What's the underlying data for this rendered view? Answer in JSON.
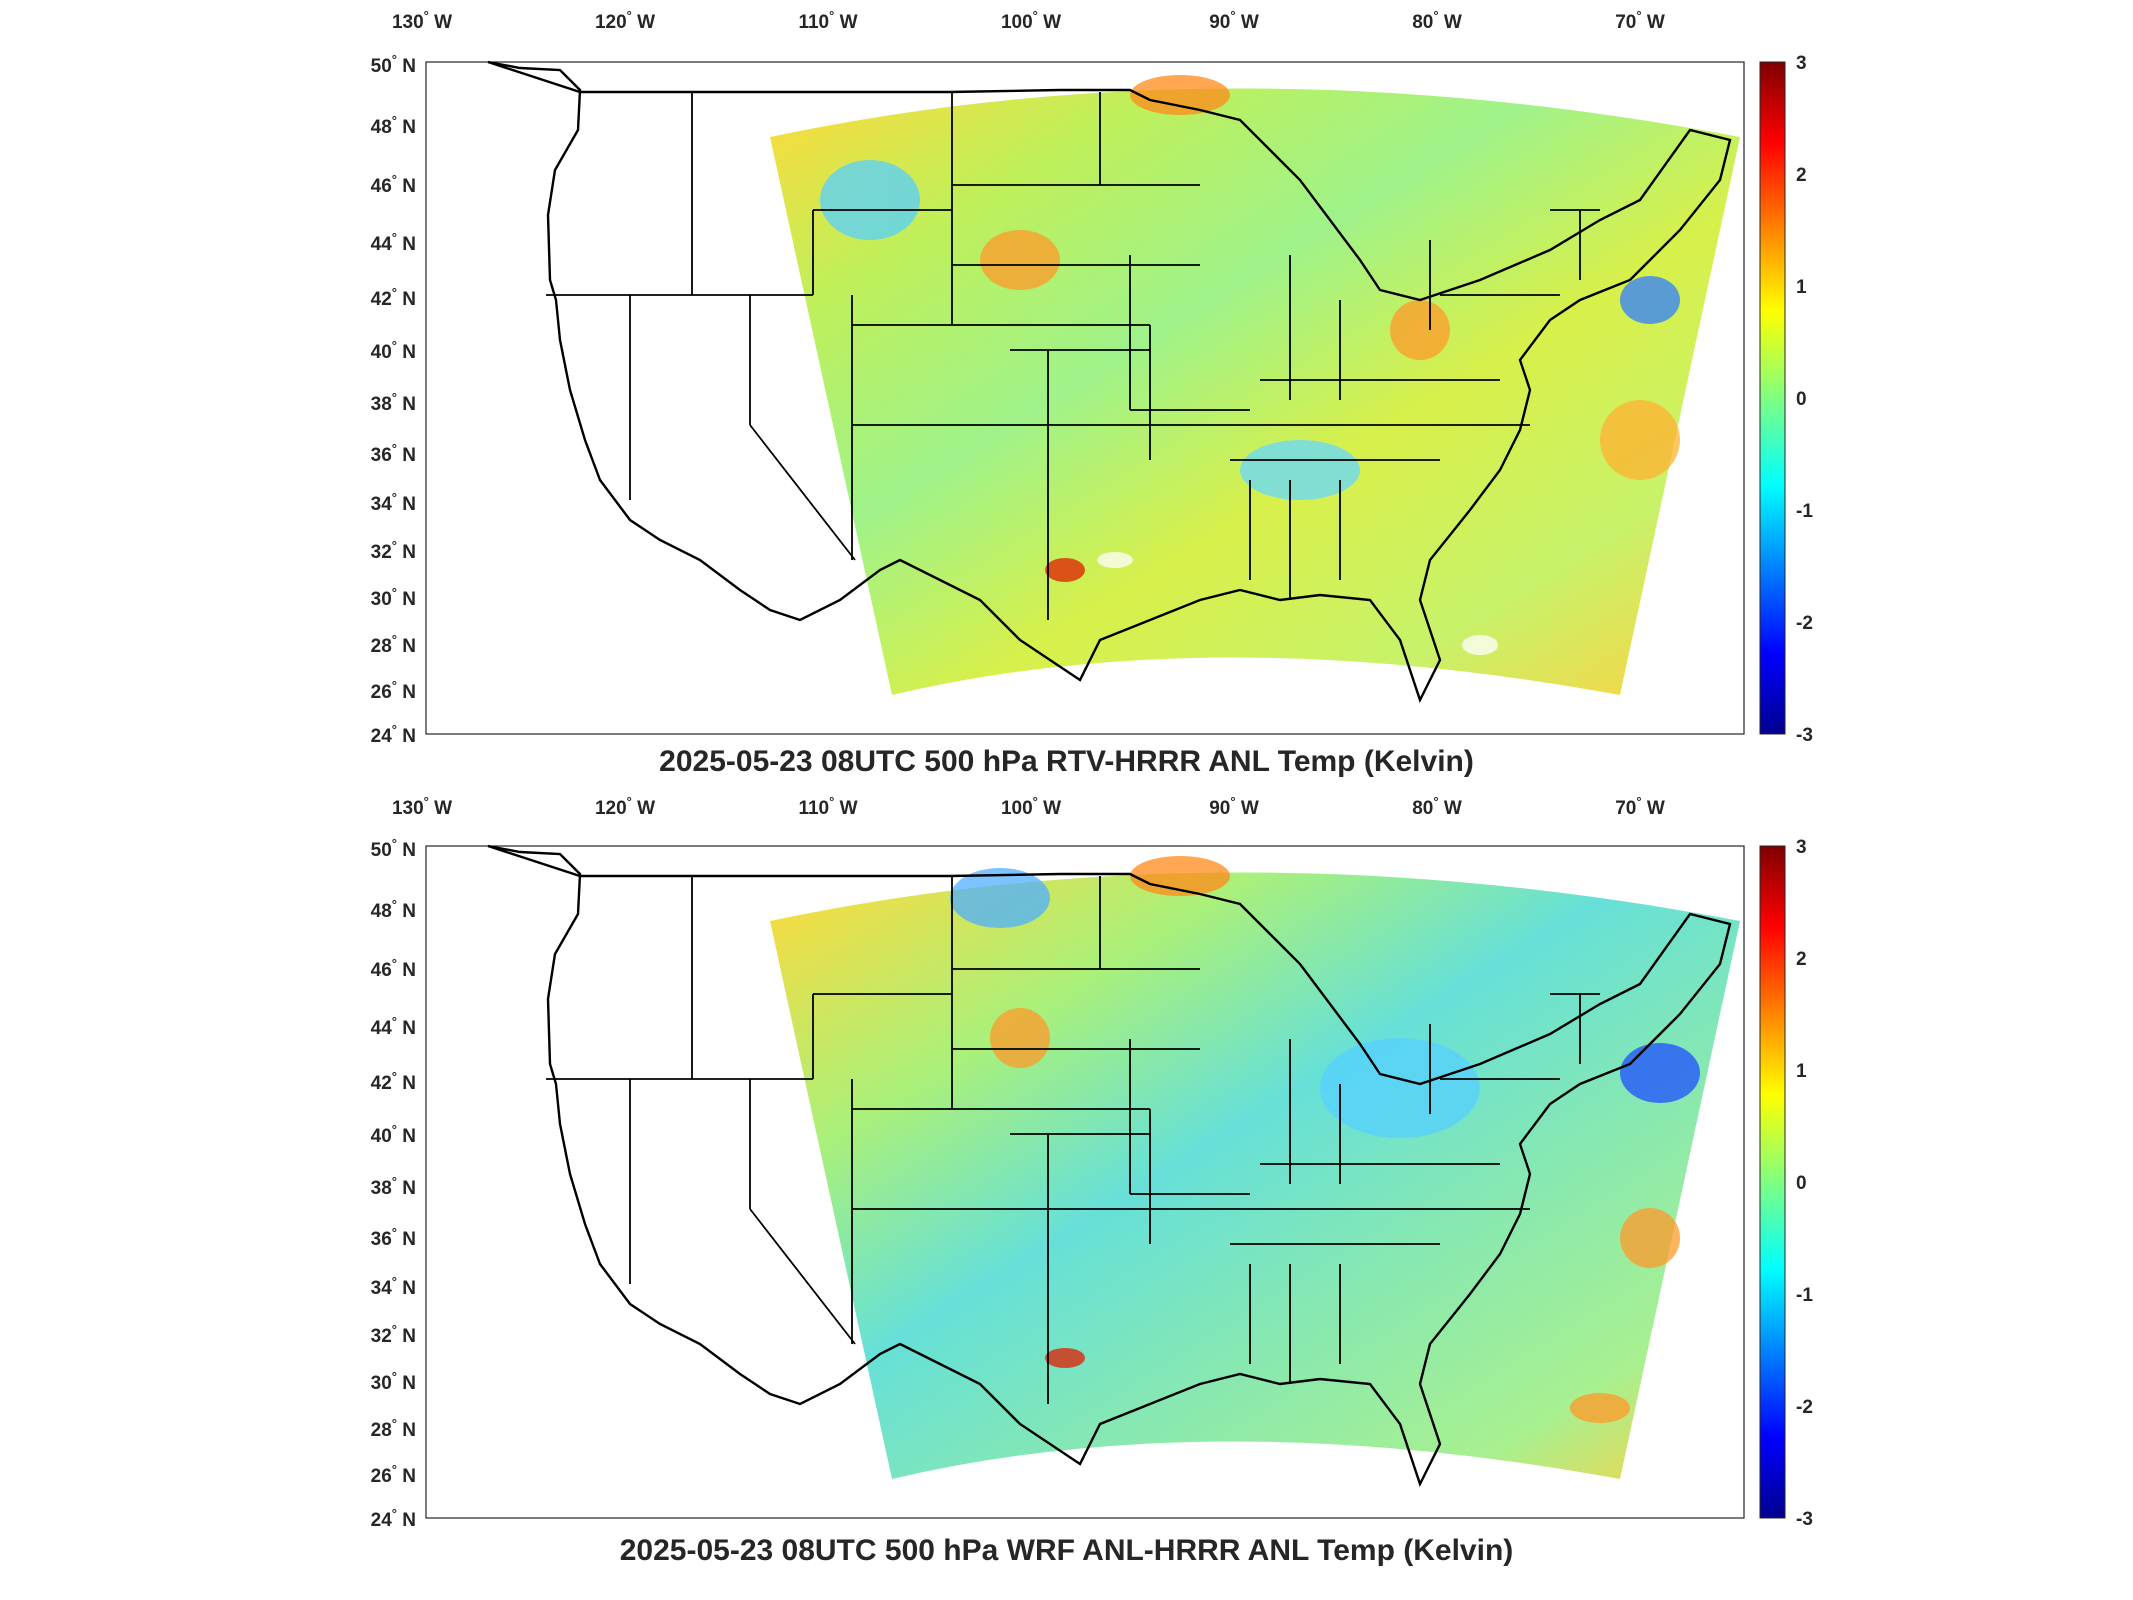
{
  "colorbar": {
    "ticks": [
      "3",
      "2",
      "1",
      "0",
      "-1",
      "-2",
      "-3"
    ],
    "colormap": [
      "#00008f",
      "#0000ff",
      "#0080ff",
      "#00ffff",
      "#80ff80",
      "#ffff00",
      "#ff8000",
      "#ff0000",
      "#800000"
    ]
  },
  "lon_labels": [
    "130",
    "120",
    "110",
    "100",
    "90",
    "80",
    "70"
  ],
  "lon_suffix": " W",
  "lat_labels": [
    "50",
    "48",
    "46",
    "44",
    "42",
    "40",
    "38",
    "36",
    "34",
    "32",
    "30",
    "28",
    "26",
    "24"
  ],
  "lat_suffix": " N",
  "degree_symbol": "°",
  "panels": [
    {
      "title": "2025-05-23 08UTC 500 hPa RTV-HRRR ANL Temp (Kelvin)"
    },
    {
      "title": "2025-05-23 08UTC 500 hPa WRF ANL-HRRR ANL Temp (Kelvin)"
    }
  ]
}
